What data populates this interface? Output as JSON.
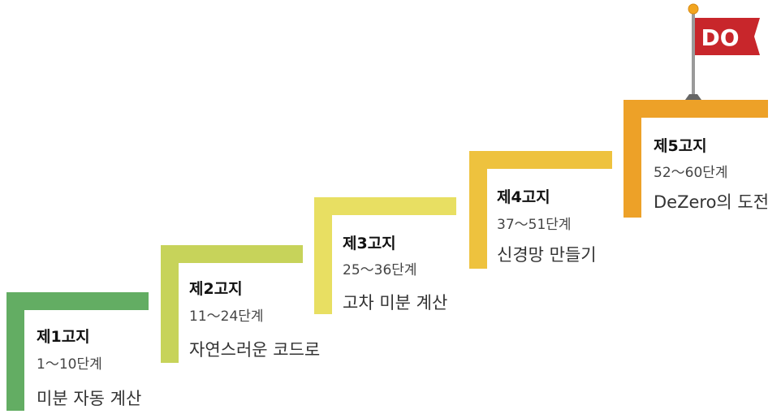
{
  "stages": [
    {
      "title": "제1고지",
      "range": "1～10단계",
      "desc": "미분 자동 계산",
      "color": "#63ad63"
    },
    {
      "title": "제2고지",
      "range": "11～24단계",
      "desc": "자연스러운 코드로",
      "color": "#c7d35a"
    },
    {
      "title": "제3고지",
      "range": "25～36단계",
      "desc": "고차 미분 계산",
      "color": "#e8df62"
    },
    {
      "title": "제4고지",
      "range": "37～51단계",
      "desc": "신경망 만들기",
      "color": "#eec23e"
    },
    {
      "title": "제5고지",
      "range": "52～60단계",
      "desc": "DeZero의 도전",
      "color": "#eda128"
    }
  ],
  "flag": {
    "logo": "DO",
    "flag_color": "#c8262b",
    "pole_color": "#9a9a9a",
    "ball_color": "#f2a51f"
  }
}
